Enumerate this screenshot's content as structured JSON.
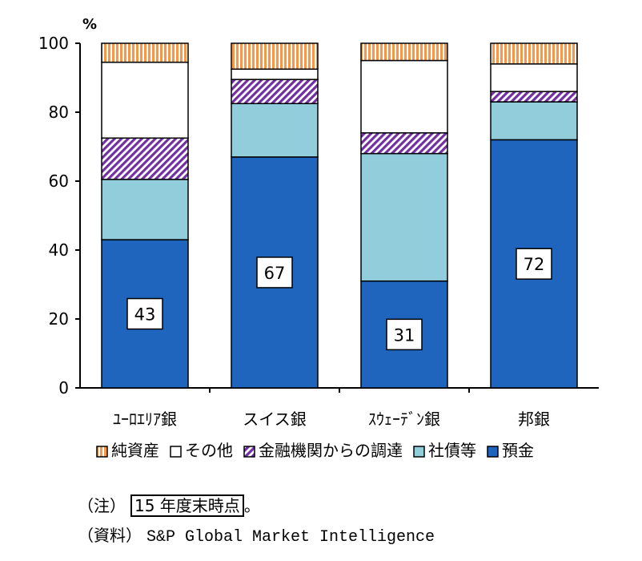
{
  "chart_data": {
    "type": "stacked-bar",
    "unit_label": "%",
    "ylim": [
      0,
      100
    ],
    "yticks": [
      0,
      20,
      40,
      60,
      80,
      100
    ],
    "categories": [
      "ﾕｰﾛｴﾘｱ銀",
      "スイス銀",
      "ｽｳｪｰﾃﾞﾝ銀",
      "邦銀"
    ],
    "series": [
      {
        "name": "預金",
        "values": [
          43,
          67,
          31,
          72
        ],
        "color": "#1f64bd",
        "pattern": "solid"
      },
      {
        "name": "社債等",
        "values": [
          17.5,
          15.5,
          37,
          11
        ],
        "color": "#92cddc",
        "pattern": "solid"
      },
      {
        "name": "金融機関からの調達",
        "values": [
          12,
          7,
          6,
          3
        ],
        "color": "#7030a0",
        "pattern": "diagonal"
      },
      {
        "name": "その他",
        "values": [
          22,
          3,
          21,
          8
        ],
        "color": "#ffffff",
        "pattern": "solid"
      },
      {
        "name": "純資産",
        "values": [
          5.5,
          7.5,
          5,
          6
        ],
        "color": "#fabf8f",
        "pattern": "vertical"
      }
    ],
    "data_labels": [
      "43",
      "67",
      "31",
      "72"
    ],
    "legend_order": [
      "純資産",
      "その他",
      "金融機関からの調達",
      "社債等",
      "預金"
    ],
    "legend_position": "bottom"
  },
  "notes": {
    "note_prefix": "（注）",
    "note_text": "15 年度末時点",
    "note_suffix": "。",
    "source_prefix": "（資料）",
    "source_text": "S&P Global Market Intelligence"
  }
}
